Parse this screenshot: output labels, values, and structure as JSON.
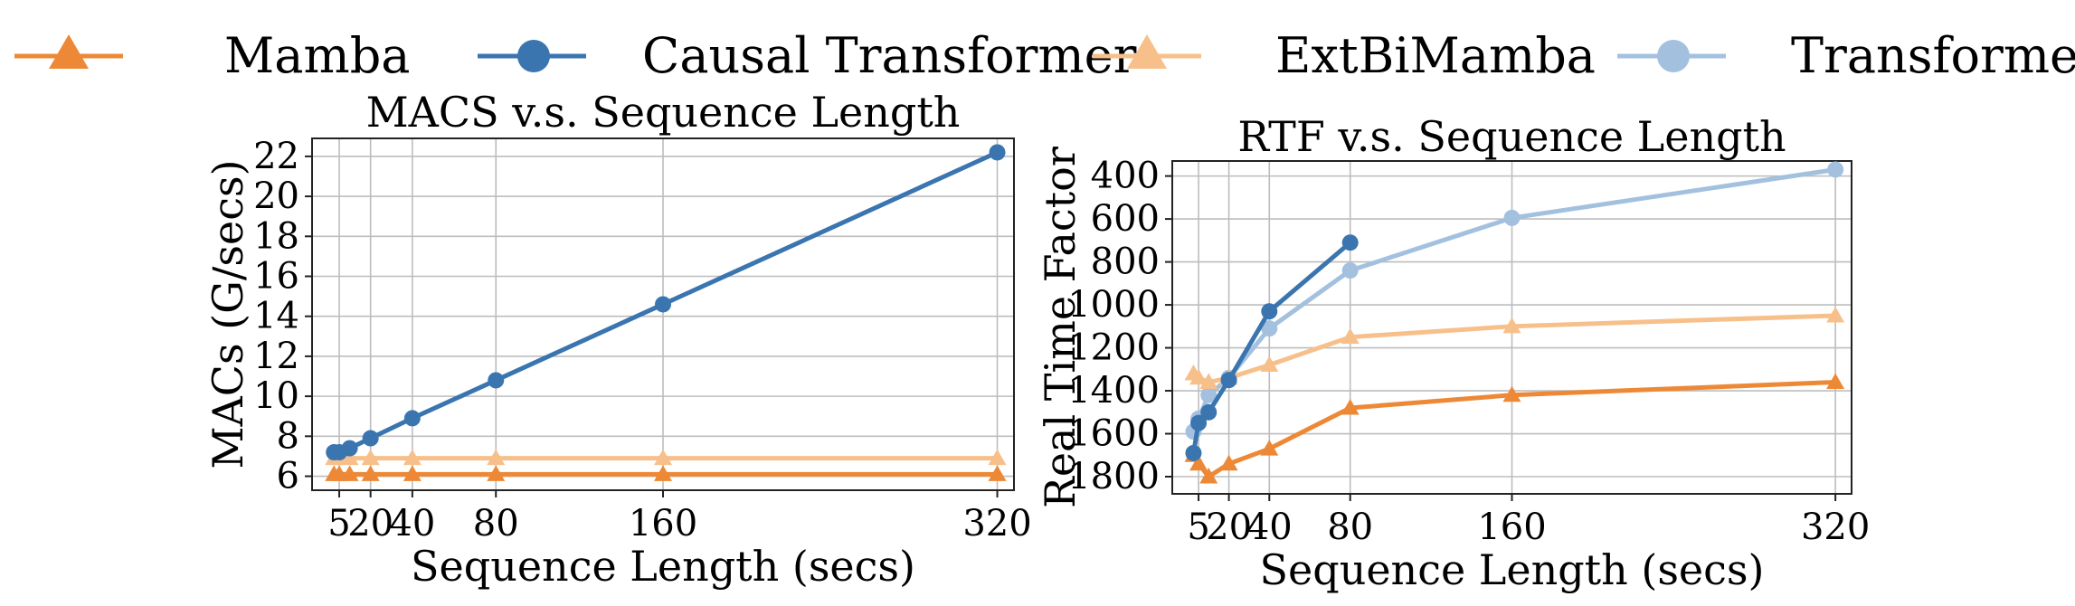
{
  "legend": {
    "items": [
      {
        "label": "Mamba",
        "color": "#ed8936",
        "marker": "triangle",
        "alpha": 1.0
      },
      {
        "label": "Causal Transformer",
        "color": "#3a75b0",
        "marker": "circle",
        "alpha": 1.0
      },
      {
        "label": "ExtBiMamba",
        "color": "#f7c08b",
        "marker": "triangle",
        "alpha": 1.0
      },
      {
        "label": "Transformer",
        "color": "#a3c1df",
        "marker": "circle",
        "alpha": 1.0
      }
    ]
  },
  "chart_data": [
    {
      "type": "line",
      "title": "MACS v.s. Sequence Length",
      "xlabel": "Sequence Length (secs)",
      "ylabel": "MACs (G/secs)",
      "xticks": [
        5,
        20,
        40,
        80,
        160,
        320
      ],
      "xtick_labels": [
        "5",
        "20",
        "40",
        "80",
        "160",
        "320"
      ],
      "xlim": [
        -8,
        328
      ],
      "yticks": [
        6,
        8,
        10,
        12,
        14,
        16,
        18,
        20,
        22
      ],
      "ytick_labels": [
        "6",
        "8",
        "10",
        "12",
        "14",
        "16",
        "18",
        "20",
        "22"
      ],
      "ylim": [
        5.3,
        22.9
      ],
      "y_inverted": false,
      "grid": true,
      "series": [
        {
          "name": "ExtBiMamba",
          "color": "#f7c08b",
          "marker": "triangle",
          "x": [
            2.5,
            5,
            10,
            20,
            40,
            80,
            160,
            320
          ],
          "y": [
            6.9,
            6.9,
            6.9,
            6.9,
            6.9,
            6.9,
            6.9,
            6.9
          ]
        },
        {
          "name": "Mamba",
          "color": "#ed8936",
          "marker": "triangle",
          "x": [
            2.5,
            5,
            10,
            20,
            40,
            80,
            160,
            320
          ],
          "y": [
            6.1,
            6.1,
            6.1,
            6.1,
            6.1,
            6.1,
            6.1,
            6.1
          ]
        },
        {
          "name": "Causal Transformer",
          "color": "#3a75b0",
          "marker": "circle",
          "x": [
            2.5,
            5,
            10,
            20,
            40,
            80,
            160,
            320
          ],
          "y": [
            7.2,
            7.2,
            7.4,
            7.9,
            8.9,
            10.8,
            14.6,
            22.2
          ]
        }
      ]
    },
    {
      "type": "line",
      "title": "RTF v.s. Sequence Length",
      "xlabel": "Sequence Length (secs)",
      "ylabel": "Real Time Factor",
      "xticks": [
        5,
        20,
        40,
        80,
        160,
        320
      ],
      "xtick_labels": [
        "5",
        "20",
        "40",
        "80",
        "160",
        "320"
      ],
      "xlim": [
        -8,
        328
      ],
      "yticks": [
        400,
        600,
        800,
        1000,
        1200,
        1400,
        1600,
        1800
      ],
      "ytick_labels": [
        "400",
        "600",
        "800",
        "1000",
        "1200",
        "1400",
        "1600",
        "1800"
      ],
      "ylim": [
        330,
        1880
      ],
      "y_inverted": true,
      "grid": true,
      "series": [
        {
          "name": "Transformer",
          "color": "#a3c1df",
          "marker": "circle",
          "x": [
            2.5,
            5,
            10,
            20,
            40,
            80,
            160,
            320
          ],
          "y": [
            1590,
            1530,
            1420,
            1340,
            1110,
            840,
            595,
            370
          ]
        },
        {
          "name": "ExtBiMamba",
          "color": "#f7c08b",
          "marker": "triangle",
          "x": [
            2.5,
            5,
            10,
            20,
            40,
            80,
            160,
            320
          ],
          "y": [
            1320,
            1340,
            1360,
            1340,
            1280,
            1150,
            1100,
            1050
          ]
        },
        {
          "name": "Mamba",
          "color": "#ed8936",
          "marker": "triangle",
          "x": [
            2.5,
            5,
            10,
            20,
            40,
            80,
            160,
            320
          ],
          "y": [
            1700,
            1740,
            1800,
            1740,
            1670,
            1480,
            1420,
            1360
          ]
        },
        {
          "name": "Causal Transformer",
          "color": "#3a75b0",
          "marker": "circle",
          "x": [
            2.5,
            5,
            10,
            20,
            40,
            80
          ],
          "y": [
            1690,
            1550,
            1500,
            1350,
            1030,
            710
          ]
        }
      ]
    }
  ]
}
